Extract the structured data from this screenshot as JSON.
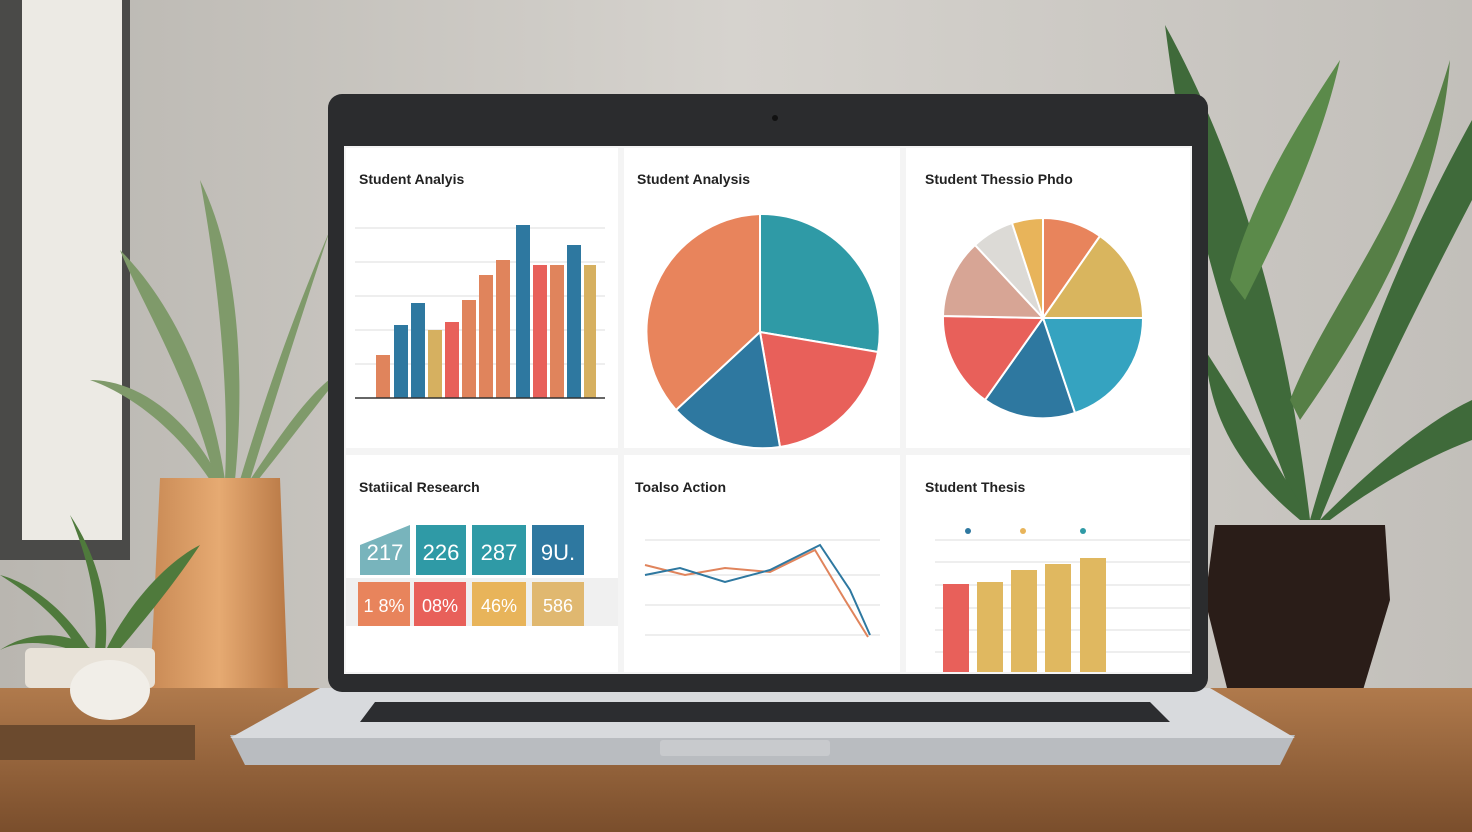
{
  "screen": {
    "panels": [
      {
        "title": "Student Analyis"
      },
      {
        "title": "Student Analysis"
      },
      {
        "title": "Student Thessio Phdo"
      },
      {
        "title": "Statiical Research"
      },
      {
        "title": "Toalso Action"
      },
      {
        "title": "Student Thesis"
      }
    ],
    "kpis": {
      "top": [
        "217",
        "226",
        "287",
        "9U."
      ],
      "bottom": [
        "1 8%",
        "08%",
        "46%",
        "586"
      ]
    }
  }
}
